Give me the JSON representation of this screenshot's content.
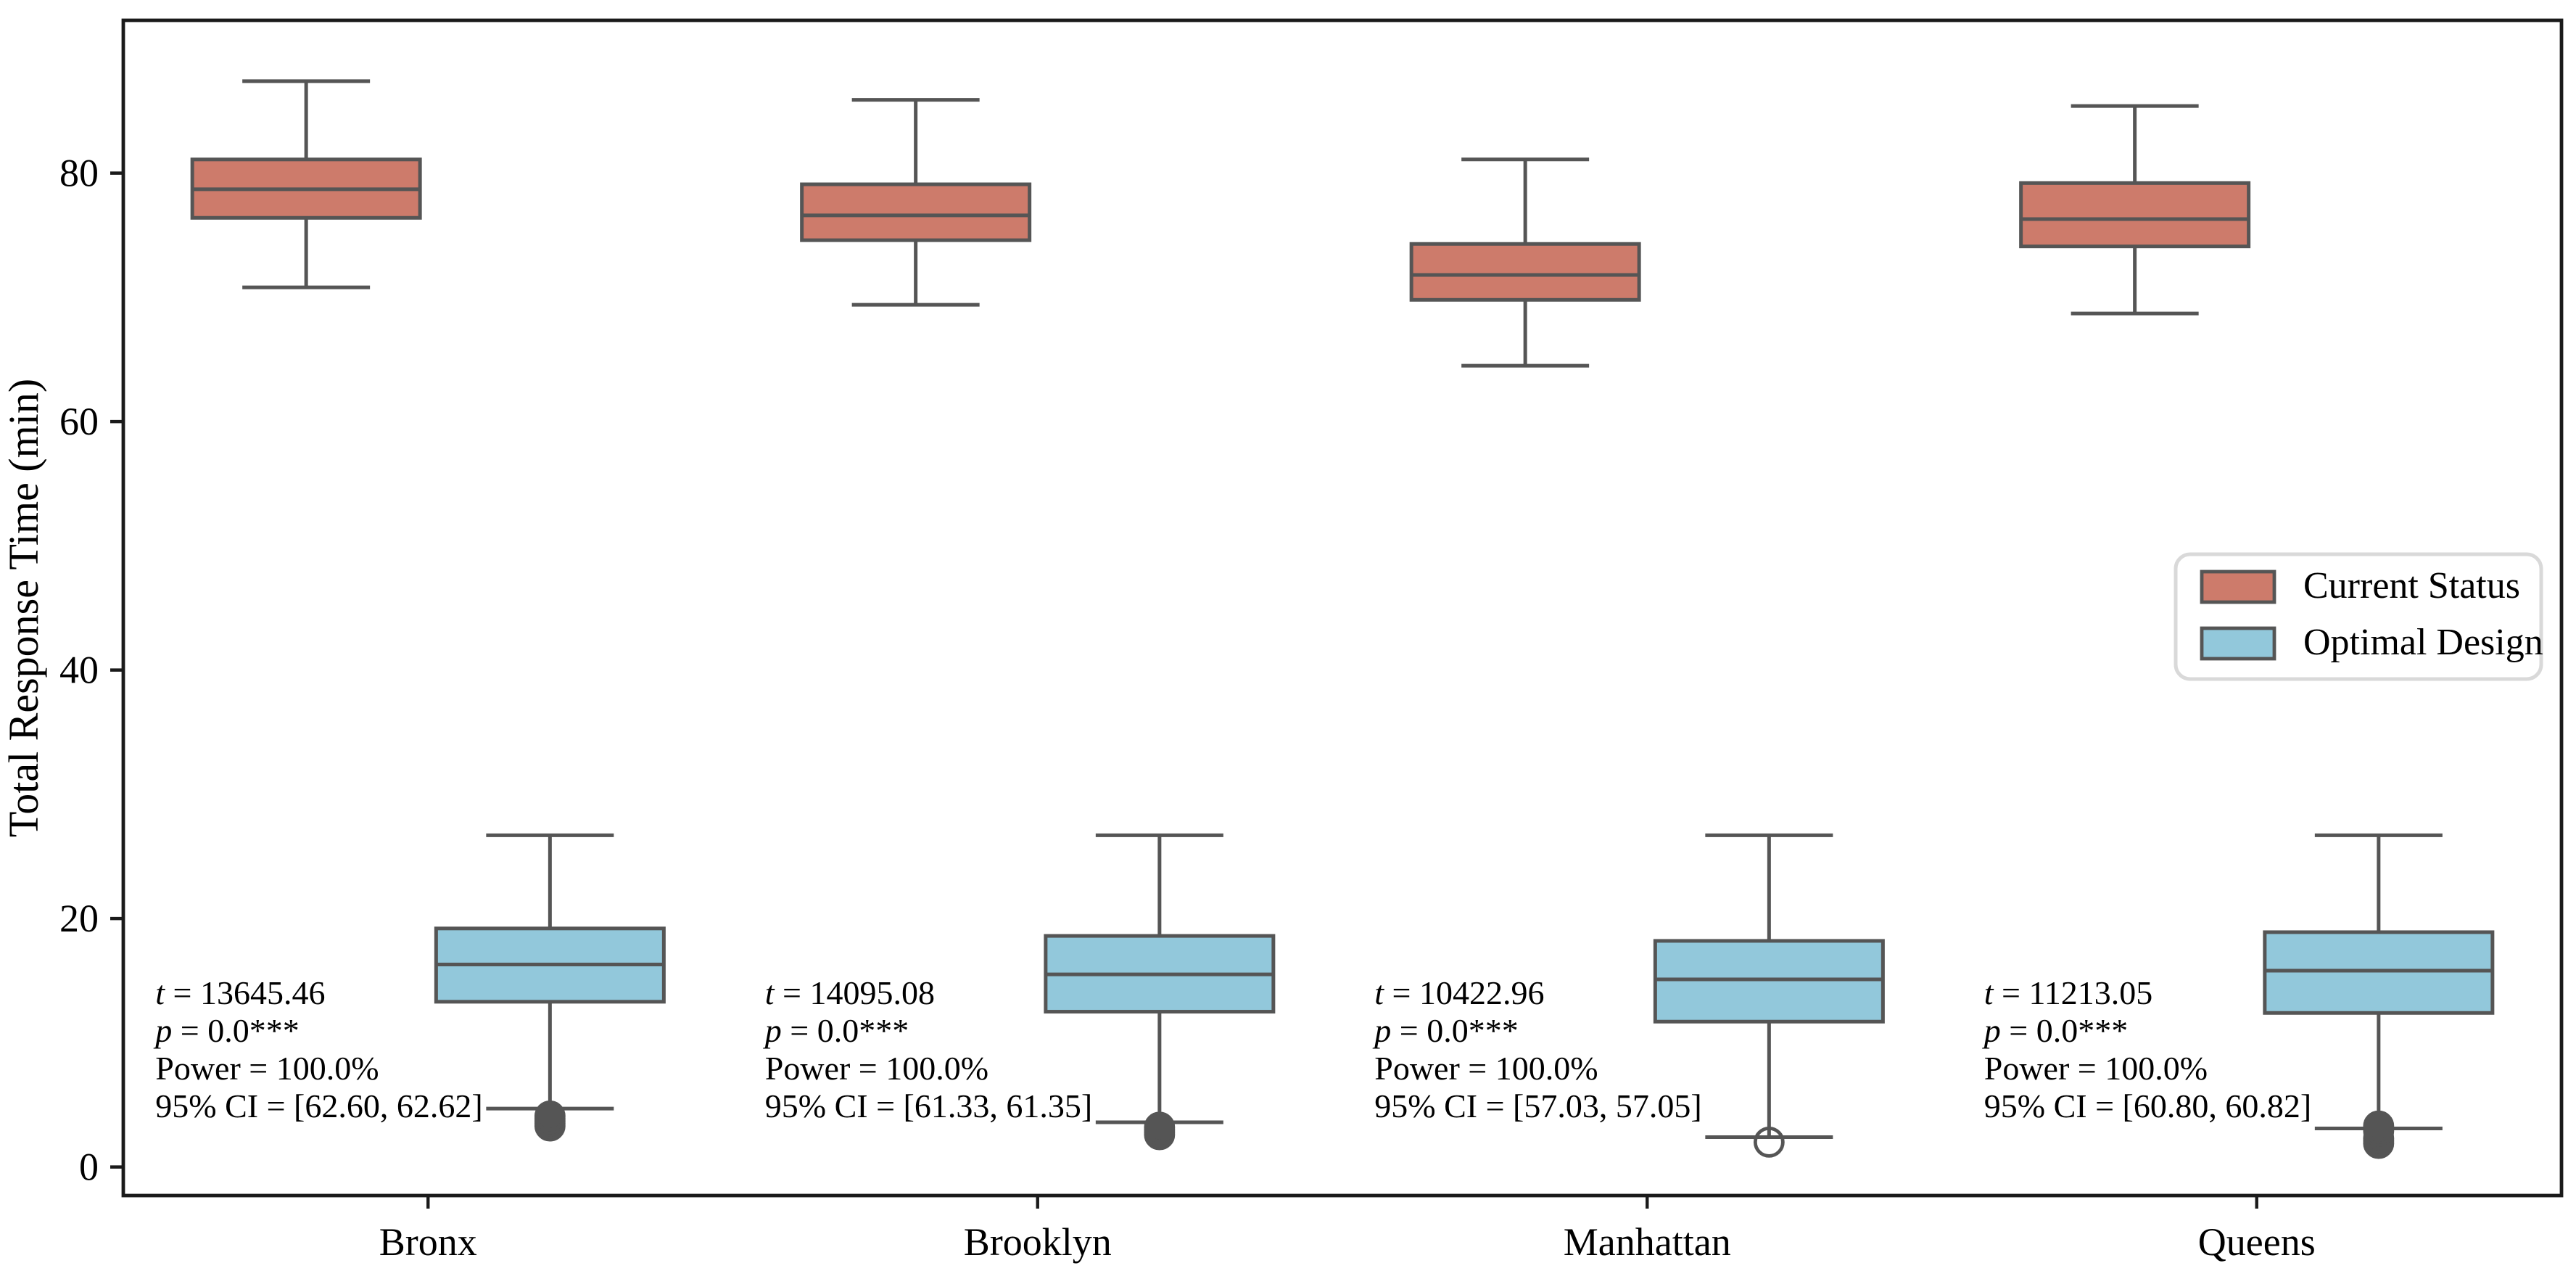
{
  "figure": {
    "background": "#ffffff",
    "spine_color": "#1a1a1a"
  },
  "legend": {
    "border_color": "#d9d9d9",
    "items": [
      {
        "label": "Current Status",
        "color": "#CD7B6B"
      },
      {
        "label": "Optimal Design",
        "color": "#92C8DB"
      }
    ]
  },
  "annotations": [
    {
      "t_var": "t",
      "t_rest": " = 13645.46",
      "p_var": "p",
      "p_rest": " = 0.0***",
      "power_line": "Power = 100.0%",
      "ci_line": "95% CI = [62.60, 62.62]"
    },
    {
      "t_var": "t",
      "t_rest": " = 14095.08",
      "p_var": "p",
      "p_rest": " = 0.0***",
      "power_line": "Power = 100.0%",
      "ci_line": "95% CI = [61.33, 61.35]"
    },
    {
      "t_var": "t",
      "t_rest": " = 10422.96",
      "p_var": "p",
      "p_rest": " = 0.0***",
      "power_line": "Power = 100.0%",
      "ci_line": "95% CI = [57.03, 57.05]"
    },
    {
      "t_var": "t",
      "t_rest": " = 11213.05",
      "p_var": "p",
      "p_rest": " = 0.0***",
      "power_line": "Power = 100.0%",
      "ci_line": "95% CI = [60.80, 60.82]"
    }
  ],
  "chart_data": {
    "type": "boxplot",
    "title": "",
    "xlabel": "",
    "ylabel": "Total Response Time (min)",
    "categories": [
      "Bronx",
      "Brooklyn",
      "Manhattan",
      "Queens"
    ],
    "yticks": [
      0,
      20,
      40,
      60,
      80
    ],
    "ylim": [
      -2.3,
      92.3
    ],
    "grid": false,
    "legend_position": "center-right",
    "box_edge_color": "#555555",
    "series": [
      {
        "name": "Current Status",
        "color": "#CD7B6B",
        "boxes": [
          {
            "category": "Bronx",
            "whislo": 70.8,
            "q1": 76.4,
            "med": 78.7,
            "q3": 81.1,
            "whishi": 87.4,
            "outliers": [],
            "outlier_filled": false
          },
          {
            "category": "Brooklyn",
            "whislo": 69.4,
            "q1": 74.6,
            "med": 76.6,
            "q3": 79.1,
            "whishi": 85.9,
            "outliers": [],
            "outlier_filled": false
          },
          {
            "category": "Manhattan",
            "whislo": 64.5,
            "q1": 69.8,
            "med": 71.8,
            "q3": 74.3,
            "whishi": 81.1,
            "outliers": [],
            "outlier_filled": false
          },
          {
            "category": "Queens",
            "whislo": 68.7,
            "q1": 74.1,
            "med": 76.3,
            "q3": 79.2,
            "whishi": 85.4,
            "outliers": [],
            "outlier_filled": false
          }
        ]
      },
      {
        "name": "Optimal Design",
        "color": "#92C8DB",
        "boxes": [
          {
            "category": "Bronx",
            "whislo": 4.7,
            "q1": 13.3,
            "med": 16.3,
            "q3": 19.2,
            "whishi": 26.7,
            "outliers": [
              3.3,
              3.5,
              3.7,
              3.9,
              4.1
            ],
            "outlier_filled": true
          },
          {
            "category": "Brooklyn",
            "whislo": 3.6,
            "q1": 12.5,
            "med": 15.5,
            "q3": 18.6,
            "whishi": 26.7,
            "outliers": [
              2.6,
              2.8,
              3.0,
              3.2
            ],
            "outlier_filled": true
          },
          {
            "category": "Manhattan",
            "whislo": 2.4,
            "q1": 11.7,
            "med": 15.1,
            "q3": 18.2,
            "whishi": 26.7,
            "outliers": [
              2.0
            ],
            "outlier_filled": false
          },
          {
            "category": "Queens",
            "whislo": 3.1,
            "q1": 12.4,
            "med": 15.8,
            "q3": 18.9,
            "whishi": 26.7,
            "outliers": [
              1.9,
              2.1,
              2.3,
              2.9,
              3.1,
              3.3
            ],
            "outlier_filled": true
          }
        ]
      }
    ]
  }
}
